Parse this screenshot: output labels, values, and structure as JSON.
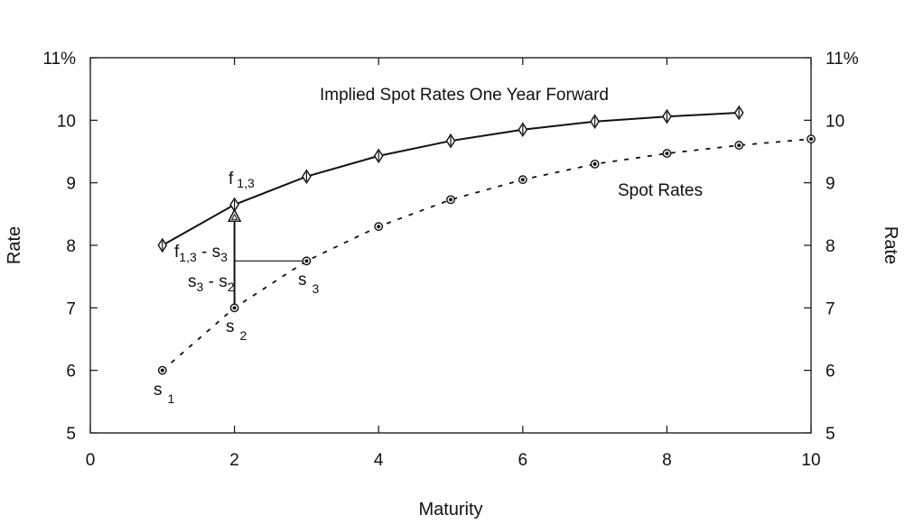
{
  "chart_data": {
    "type": "line",
    "xlabel": "Maturity",
    "ylabel": "Rate",
    "ylabel_right": "Rate",
    "xlim": [
      0,
      10
    ],
    "ylim": [
      5,
      11
    ],
    "x_ticks": [
      "0",
      "2",
      "4",
      "6",
      "8",
      "10"
    ],
    "y_ticks": [
      "5",
      "6",
      "7",
      "8",
      "9",
      "10",
      "11%"
    ],
    "grid": false,
    "series": [
      {
        "name": "Implied Spot Rates One Year Forward",
        "style": "solid",
        "marker": "diamond",
        "x": [
          1,
          2,
          3,
          4,
          5,
          6,
          7,
          8,
          9
        ],
        "y": [
          8.0,
          8.65,
          9.1,
          9.43,
          9.67,
          9.85,
          9.98,
          10.06,
          10.12
        ]
      },
      {
        "name": "Spot Rates",
        "style": "dotted",
        "marker": "circle",
        "x": [
          1,
          2,
          3,
          4,
          5,
          6,
          7,
          8,
          9,
          10
        ],
        "y": [
          6.0,
          7.0,
          7.75,
          8.3,
          8.73,
          9.05,
          9.3,
          9.47,
          9.6,
          9.7
        ]
      }
    ],
    "triangle_point": {
      "x": 2,
      "y": 8.45
    },
    "annotations": {
      "f13": {
        "main": "f",
        "sub": "1,3"
      },
      "diff_f": {
        "a": "f",
        "a_sub": "1,3",
        "sep": " - ",
        "b": "s",
        "b_sub": "3"
      },
      "diff_s": {
        "a": "s",
        "a_sub": "3",
        "sep": " - ",
        "b": "s",
        "b_sub": "2"
      },
      "s1": {
        "main": "s",
        "sub": "1"
      },
      "s2": {
        "main": "s",
        "sub": "2"
      },
      "s3": {
        "main": "s",
        "sub": "3"
      }
    },
    "colors": {
      "line": "#111111",
      "background": "#ffffff"
    }
  }
}
